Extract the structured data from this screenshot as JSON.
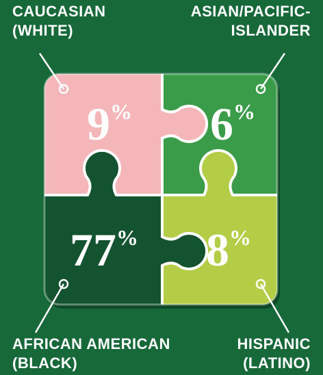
{
  "pieces": [
    {
      "label": [
        "CAUCASIAN",
        "(WHITE)"
      ],
      "value": 9,
      "unit": "%"
    },
    {
      "label": [
        "ASIAN/PACIFIC-",
        "ISLANDER"
      ],
      "value": 6,
      "unit": "%"
    },
    {
      "label": [
        "AFRICAN AMERICAN",
        "(BLACK)"
      ],
      "value": 77,
      "unit": "%"
    },
    {
      "label": [
        "HISPANIC",
        "(LATINO)"
      ],
      "value": 8,
      "unit": "%"
    }
  ]
}
